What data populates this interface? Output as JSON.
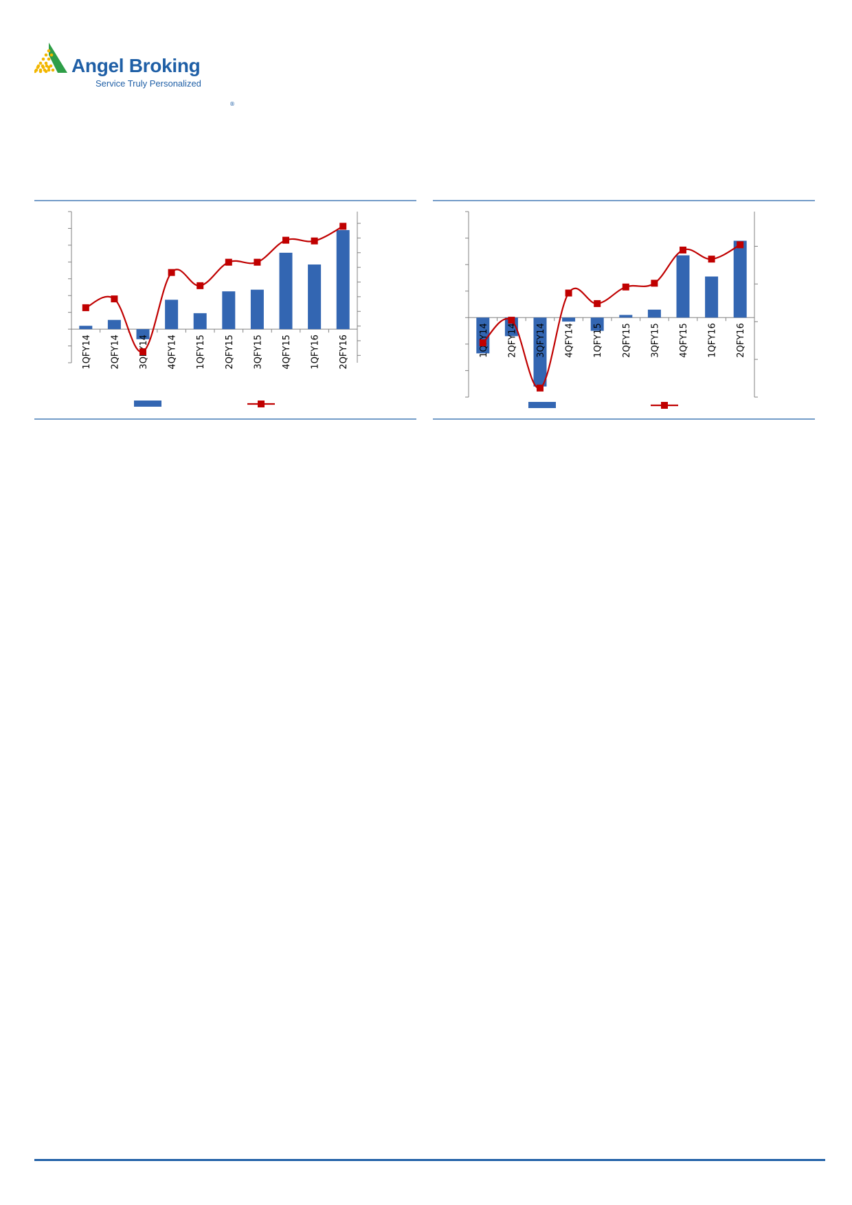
{
  "brand": {
    "name": "Angel Broking",
    "tagline": "Service Truly Personalized",
    "registered_mark": "®",
    "colors": {
      "blue": "#1f5fa6",
      "green": "#2e9e47",
      "yellow": "#f2b600"
    }
  },
  "chart_data": [
    {
      "type": "bar",
      "combo": "bar+line",
      "categories": [
        "1QFY14",
        "2QFY14",
        "3QFY14",
        "4QFY14",
        "1QFY15",
        "2QFY15",
        "3QFY15",
        "4QFY15",
        "1QFY16",
        "2QFY16"
      ],
      "series": [
        {
          "type": "bar",
          "axis": "left",
          "color": "#3366b2",
          "values": [
            2,
            5.5,
            -6,
            17.5,
            9.5,
            22.5,
            23.5,
            45.5,
            38.5,
            59
          ]
        },
        {
          "type": "line",
          "axis": "right",
          "color": "#c00000",
          "smooth": true,
          "values": [
            12.5,
            18.5,
            -17.5,
            36.5,
            27.5,
            43.5,
            43.5,
            58.5,
            58,
            68
          ]
        }
      ],
      "ylim_left": [
        -20,
        70
      ],
      "ylim_right": [
        -25,
        78
      ],
      "grid": false,
      "legend": "bottom",
      "axis_tick_labels_shown": false
    },
    {
      "type": "bar",
      "combo": "bar+line",
      "categories": [
        "1QFY14",
        "2QFY14",
        "3QFY14",
        "4QFY14",
        "1QFY15",
        "2QFY15",
        "3QFY15",
        "4QFY15",
        "1QFY16",
        "2QFY16"
      ],
      "series": [
        {
          "type": "bar",
          "axis": "left",
          "color": "#3366b2",
          "values": [
            -13.5,
            -7,
            -26,
            -1.5,
            -5,
            1,
            3,
            23.5,
            15.5,
            29
          ]
        },
        {
          "type": "line",
          "axis": "right",
          "color": "#c00000",
          "smooth": true,
          "values": [
            -14,
            1,
            -44,
            19,
            12,
            23,
            25.5,
            47.5,
            41.5,
            51
          ]
        }
      ],
      "ylim_left": [
        -30,
        40
      ],
      "ylim_right": [
        -50,
        73
      ],
      "grid": false,
      "legend": "bottom",
      "axis_tick_labels_shown": false
    }
  ]
}
